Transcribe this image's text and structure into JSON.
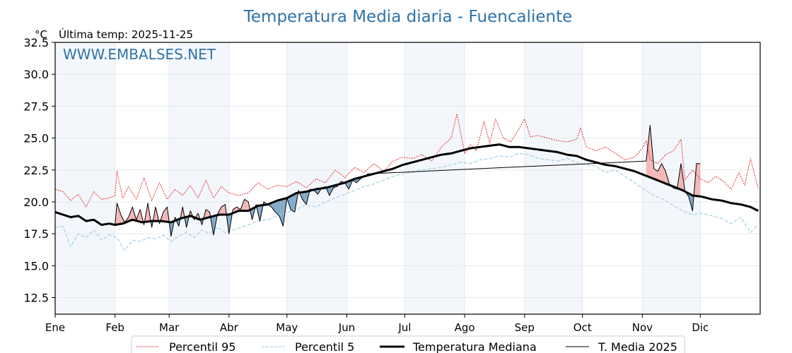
{
  "chart_data": {
    "type": "line",
    "title": "Temperatura Media diaria - Fuencaliente",
    "subtitle": "Última temp: 2025-11-25",
    "unit_label": "°C",
    "watermark": "WWW.EMBALSES.NET",
    "xlabel": "",
    "ylabel": "°C",
    "ylim": [
      11.2,
      32.5
    ],
    "yticks": [
      "12.5",
      "15.0",
      "17.5",
      "20.0",
      "22.5",
      "25.0",
      "27.5",
      "30.0",
      "32.5"
    ],
    "xticks": [
      "Ene",
      "Feb",
      "Mar",
      "Abr",
      "May",
      "Jun",
      "Jul",
      "Ago",
      "Sep",
      "Oct",
      "Nov",
      "Dic"
    ],
    "xtick_doy": [
      0,
      31,
      59,
      90,
      120,
      151,
      181,
      212,
      243,
      273,
      304,
      334
    ],
    "shaded_months": [
      "Ene",
      "Mar",
      "May",
      "Jul",
      "Sep",
      "Nov"
    ],
    "grid": true,
    "legend_position": "bottom-center",
    "colors": {
      "p95": "#e8262a",
      "p5": "#a8d4e6",
      "median": "#000000",
      "current": "#000000",
      "above": "#f4b4b4",
      "below": "#7fa6c8",
      "title": "#2f72a8",
      "shade": "#f3f7fb"
    },
    "series": [
      {
        "name": "Percentil 95",
        "style": "dotted-red",
        "x": [
          0,
          4,
          8,
          12,
          16,
          20,
          24,
          28,
          31,
          32,
          35,
          38,
          42,
          46,
          50,
          54,
          58,
          62,
          66,
          70,
          74,
          78,
          82,
          86,
          90,
          95,
          100,
          105,
          110,
          115,
          120,
          125,
          130,
          135,
          140,
          145,
          150,
          155,
          160,
          165,
          170,
          175,
          180,
          185,
          190,
          195,
          200,
          205,
          208,
          212,
          215,
          218,
          222,
          225,
          228,
          232,
          236,
          240,
          243,
          246,
          250,
          255,
          260,
          265,
          270,
          272,
          275,
          280,
          285,
          290,
          295,
          300,
          304,
          306,
          308,
          312,
          316,
          320,
          324,
          326,
          330,
          334,
          338,
          342,
          346,
          350,
          354,
          357,
          360,
          364
        ],
        "values": [
          21.0,
          20.8,
          20.1,
          20.6,
          19.6,
          20.8,
          20.2,
          20.3,
          20.5,
          22.4,
          20.3,
          21.2,
          20.2,
          21.9,
          20.1,
          21.5,
          20.2,
          21.0,
          20.5,
          21.3,
          20.3,
          21.7,
          20.3,
          21.2,
          20.7,
          20.5,
          20.7,
          21.5,
          21.0,
          21.3,
          21.2,
          21.6,
          21.1,
          21.8,
          21.5,
          22.5,
          21.9,
          22.7,
          22.3,
          23.0,
          22.4,
          23.2,
          23.5,
          23.4,
          23.7,
          23.2,
          24.3,
          25.0,
          26.9,
          23.8,
          24.5,
          24.0,
          26.3,
          24.6,
          26.5,
          25.0,
          24.7,
          25.7,
          26.5,
          25.1,
          25.2,
          25.0,
          24.8,
          24.7,
          24.9,
          25.8,
          24.3,
          24.0,
          24.3,
          23.8,
          23.3,
          23.5,
          24.2,
          24.8,
          23.3,
          23.0,
          23.7,
          24.0,
          24.9,
          21.7,
          22.5,
          21.8,
          21.5,
          22.0,
          21.6,
          21.0,
          22.3,
          21.3,
          23.4,
          21.0
        ]
      },
      {
        "name": "Percentil 5",
        "style": "dashed-lightblue",
        "x": [
          0,
          4,
          8,
          12,
          16,
          20,
          24,
          28,
          32,
          36,
          40,
          44,
          48,
          52,
          56,
          60,
          64,
          68,
          72,
          76,
          80,
          84,
          88,
          92,
          96,
          100,
          105,
          110,
          115,
          120,
          125,
          130,
          135,
          140,
          145,
          150,
          155,
          160,
          165,
          170,
          175,
          180,
          185,
          190,
          195,
          200,
          205,
          210,
          215,
          220,
          225,
          230,
          235,
          240,
          245,
          250,
          255,
          260,
          265,
          270,
          275,
          280,
          285,
          290,
          295,
          300,
          305,
          310,
          315,
          320,
          325,
          330,
          335,
          340,
          345,
          350,
          355,
          360,
          364
        ],
        "values": [
          18.0,
          18.1,
          16.5,
          17.5,
          17.2,
          17.8,
          17.0,
          17.4,
          17.2,
          16.2,
          17.0,
          16.9,
          17.2,
          17.1,
          17.4,
          16.9,
          17.3,
          17.6,
          17.2,
          17.8,
          17.5,
          18.0,
          17.6,
          17.8,
          18.0,
          18.2,
          18.5,
          18.6,
          18.9,
          19.2,
          19.4,
          19.8,
          19.6,
          20.0,
          20.3,
          20.6,
          20.9,
          21.2,
          21.4,
          21.7,
          22.0,
          22.2,
          22.3,
          22.5,
          22.6,
          22.7,
          22.9,
          23.1,
          23.0,
          23.3,
          23.4,
          23.6,
          23.5,
          23.8,
          23.7,
          23.4,
          23.3,
          23.2,
          23.4,
          23.1,
          22.9,
          22.8,
          22.3,
          22.5,
          22.0,
          21.5,
          21.0,
          20.5,
          20.2,
          19.7,
          19.3,
          19.0,
          19.1,
          18.9,
          18.7,
          18.3,
          18.8,
          17.6,
          18.2
        ]
      },
      {
        "name": "Temperatura Mediana",
        "style": "thick-black",
        "x": [
          0,
          4,
          8,
          12,
          16,
          20,
          24,
          28,
          31,
          35,
          40,
          45,
          50,
          55,
          60,
          65,
          70,
          75,
          80,
          85,
          90,
          95,
          100,
          105,
          110,
          115,
          120,
          125,
          130,
          135,
          140,
          145,
          150,
          155,
          160,
          165,
          170,
          175,
          180,
          185,
          190,
          195,
          200,
          205,
          210,
          215,
          220,
          225,
          230,
          235,
          240,
          245,
          250,
          255,
          260,
          265,
          270,
          275,
          280,
          285,
          290,
          295,
          300,
          305,
          310,
          315,
          320,
          325,
          330,
          335,
          340,
          345,
          350,
          355,
          360,
          364
        ],
        "values": [
          19.2,
          19.0,
          18.8,
          18.9,
          18.5,
          18.6,
          18.2,
          18.3,
          18.2,
          18.3,
          18.6,
          18.4,
          18.5,
          18.5,
          18.4,
          18.7,
          18.9,
          18.6,
          18.8,
          19.0,
          19.0,
          19.3,
          19.3,
          19.7,
          19.8,
          20.1,
          20.3,
          20.7,
          20.8,
          21.0,
          21.1,
          21.3,
          21.5,
          21.8,
          22.0,
          22.2,
          22.4,
          22.6,
          22.9,
          23.1,
          23.3,
          23.5,
          23.7,
          23.8,
          24.0,
          24.2,
          24.3,
          24.4,
          24.5,
          24.3,
          24.3,
          24.2,
          24.1,
          24.0,
          23.9,
          23.7,
          23.6,
          23.3,
          23.1,
          22.9,
          22.8,
          22.6,
          22.4,
          22.1,
          21.8,
          21.5,
          21.2,
          20.9,
          20.5,
          20.4,
          20.2,
          20.1,
          19.9,
          19.8,
          19.6,
          19.3
        ]
      },
      {
        "name": "T. Media 2025",
        "style": "thin-black",
        "x": [
          0,
          4,
          8,
          12,
          16,
          20,
          24,
          28,
          31,
          32,
          34,
          36,
          38,
          40,
          42,
          44,
          46,
          48,
          50,
          52,
          54,
          56,
          58,
          60,
          62,
          64,
          66,
          68,
          70,
          72,
          74,
          76,
          78,
          80,
          82,
          84,
          86,
          88,
          90,
          92,
          94,
          96,
          98,
          100,
          102,
          104,
          106,
          108,
          110,
          112,
          114,
          116,
          118,
          120,
          122,
          124,
          126,
          128,
          130,
          132,
          134,
          136,
          138,
          140,
          142,
          144,
          146,
          148,
          150,
          152,
          154,
          156,
          158,
          160,
          162,
          306,
          308,
          310,
          312,
          314,
          316,
          318,
          320,
          322,
          324,
          326,
          328,
          330,
          332,
          334
        ],
        "values": [
          19.2,
          19.0,
          18.8,
          18.9,
          18.5,
          18.6,
          18.2,
          18.3,
          18.2,
          19.9,
          19.0,
          18.4,
          18.8,
          19.6,
          18.6,
          19.4,
          18.2,
          19.9,
          18.0,
          19.6,
          18.3,
          19.2,
          19.6,
          17.3,
          18.8,
          18.1,
          19.6,
          18.0,
          19.3,
          18.6,
          19.1,
          18.2,
          19.4,
          19.2,
          17.4,
          19.0,
          19.6,
          19.8,
          17.5,
          19.4,
          19.6,
          19.4,
          20.2,
          20.0,
          18.6,
          19.8,
          18.5,
          20.0,
          19.8,
          19.6,
          19.2,
          18.9,
          18.1,
          20.3,
          19.4,
          19.2,
          20.9,
          20.2,
          19.8,
          21.0,
          20.9,
          20.6,
          21.1,
          21.2,
          20.5,
          21.1,
          21.2,
          21.6,
          21.5,
          21.0,
          21.7,
          21.5,
          21.8,
          22.0,
          22.2,
          23.2,
          26.0,
          22.6,
          22.4,
          23.0,
          22.4,
          21.4,
          21.1,
          21.0,
          23.0,
          20.9,
          20.4,
          19.3,
          23.0,
          23.0
        ]
      }
    ]
  }
}
